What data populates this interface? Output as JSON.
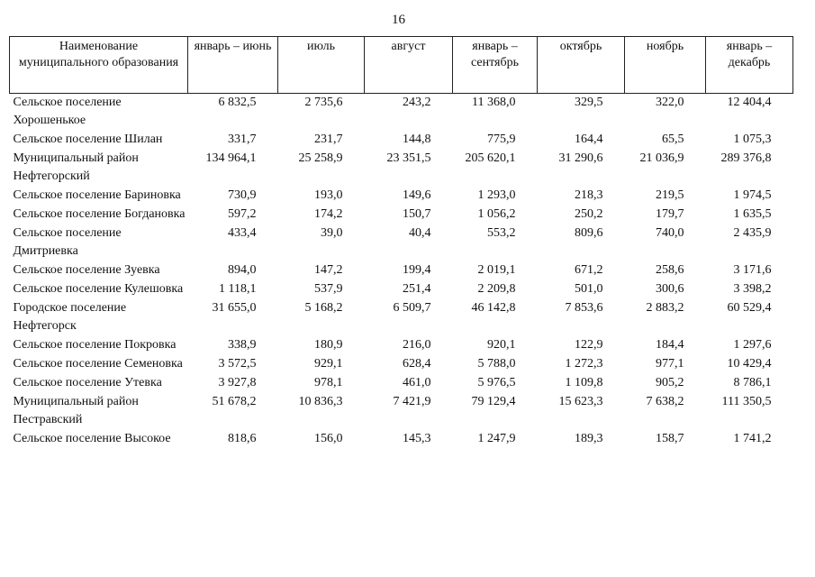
{
  "page_number": "16",
  "table": {
    "header": [
      "Наименование муниципального образования",
      "январь – июнь",
      "июль",
      "август",
      "январь – сентябрь",
      "октябрь",
      "ноябрь",
      "январь – декабрь"
    ],
    "rows": [
      [
        "Сельское поселение Хорошенькое",
        "6 832,5",
        "2 735,6",
        "243,2",
        "11 368,0",
        "329,5",
        "322,0",
        "12 404,4"
      ],
      [
        "Сельское поселение Шилан",
        "331,7",
        "231,7",
        "144,8",
        "775,9",
        "164,4",
        "65,5",
        "1 075,3"
      ],
      [
        "Муниципальный район Нефтегорский",
        "134 964,1",
        "25 258,9",
        "23 351,5",
        "205 620,1",
        "31 290,6",
        "21 036,9",
        "289 376,8"
      ],
      [
        "Сельское поселение Бариновка",
        "730,9",
        "193,0",
        "149,6",
        "1 293,0",
        "218,3",
        "219,5",
        "1 974,5"
      ],
      [
        "Сельское поселение Богдановка",
        "597,2",
        "174,2",
        "150,7",
        "1 056,2",
        "250,2",
        "179,7",
        "1 635,5"
      ],
      [
        "Сельское поселение Дмитриевка",
        "433,4",
        "39,0",
        "40,4",
        "553,2",
        "809,6",
        "740,0",
        "2 435,9"
      ],
      [
        "Сельское поселение Зуевка",
        "894,0",
        "147,2",
        "199,4",
        "2 019,1",
        "671,2",
        "258,6",
        "3 171,6"
      ],
      [
        "Сельское поселение Кулешовка",
        "1 118,1",
        "537,9",
        "251,4",
        "2 209,8",
        "501,0",
        "300,6",
        "3 398,2"
      ],
      [
        "Городское поселение Нефтегорск",
        "31 655,0",
        "5 168,2",
        "6 509,7",
        "46 142,8",
        "7 853,6",
        "2 883,2",
        "60 529,4"
      ],
      [
        "Сельское поселение Покровка",
        "338,9",
        "180,9",
        "216,0",
        "920,1",
        "122,9",
        "184,4",
        "1 297,6"
      ],
      [
        "Сельское поселение Семеновка",
        "3 572,5",
        "929,1",
        "628,4",
        "5 788,0",
        "1 272,3",
        "977,1",
        "10 429,4"
      ],
      [
        "Сельское поселение Утевка",
        "3 927,8",
        "978,1",
        "461,0",
        "5 976,5",
        "1 109,8",
        "905,2",
        "8 786,1"
      ],
      [
        "Муниципальный район Пестравский",
        "51 678,2",
        "10 836,3",
        "7 421,9",
        "79 129,4",
        "15 623,3",
        "7 638,2",
        "111 350,5"
      ],
      [
        "Сельское поселение Высокое",
        "818,6",
        "156,0",
        "145,3",
        "1 247,9",
        "189,3",
        "158,7",
        "1 741,2"
      ]
    ]
  }
}
